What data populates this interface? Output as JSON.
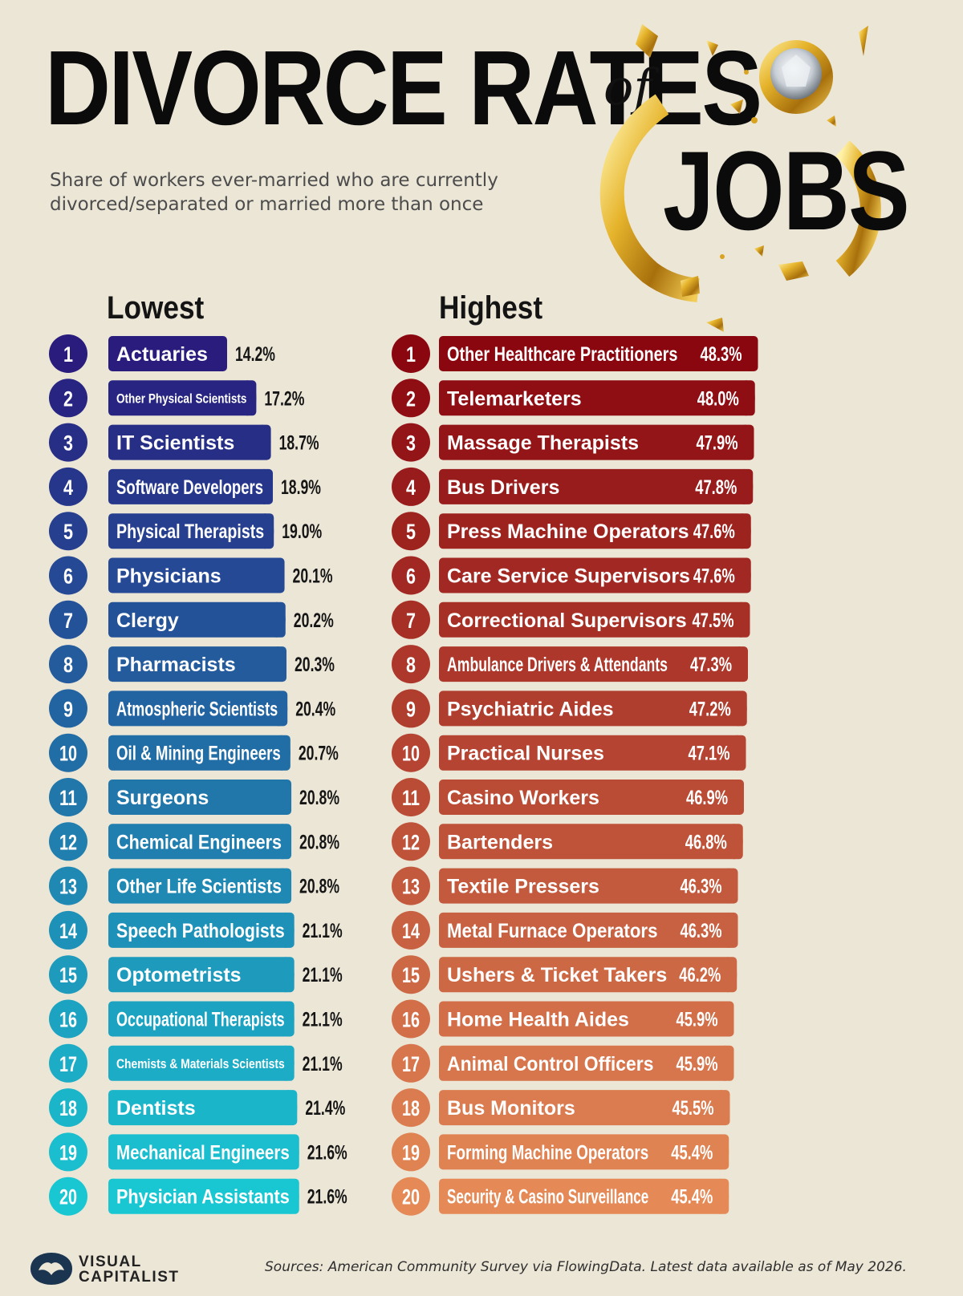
{
  "header": {
    "title_main": "DIVORCE RATES",
    "title_of": "of",
    "title_jobs": "JOBS",
    "subtitle_line1": "Share of workers ever-married who are currently",
    "subtitle_line2": "divorced/separated or married more than once"
  },
  "footer": {
    "logo_line1": "VISUAL",
    "logo_line2": "CAPITALIST",
    "source": "Sources: American Community Survey via FlowingData. Latest data available as of May 2026."
  },
  "colors": {
    "background": "#ece6d7",
    "lowest_start": "#291c7d",
    "lowest_end": "#19c7d3",
    "highest_start": "#8a0710",
    "highest_end": "#e58a57",
    "gold": "#d9a21f"
  },
  "icons": {
    "ring": "broken-gold-ring-icon",
    "logo": "visual-capitalist-logo-icon"
  },
  "chart_data": [
    {
      "type": "bar",
      "orientation": "horizontal",
      "title": "Lowest",
      "unit": "%",
      "ranks": [
        1,
        2,
        3,
        4,
        5,
        6,
        7,
        8,
        9,
        10,
        11,
        12,
        13,
        14,
        15,
        16,
        17,
        18,
        19,
        20
      ],
      "categories": [
        "Actuaries",
        "Other Physical Scientists",
        "IT Scientists",
        "Software Developers",
        "Physical Therapists",
        "Physicians",
        "Clergy",
        "Pharmacists",
        "Atmospheric Scientists",
        "Oil & Mining Engineers",
        "Surgeons",
        "Chemical Engineers",
        "Other Life Scientists",
        "Speech Pathologists",
        "Optometrists",
        "Occupational Therapists",
        "Chemists & Materials Scientists",
        "Dentists",
        "Mechanical Engineers",
        "Physician Assistants"
      ],
      "values": [
        14.2,
        17.2,
        18.7,
        18.9,
        19.0,
        20.1,
        20.2,
        20.3,
        20.4,
        20.7,
        20.8,
        20.8,
        20.8,
        21.1,
        21.1,
        21.1,
        21.1,
        21.4,
        21.6,
        21.6
      ],
      "labels": [
        "14.2%",
        "17.2%",
        "18.7%",
        "18.9%",
        "19.0%",
        "20.1%",
        "20.2%",
        "20.3%",
        "20.4%",
        "20.7%",
        "20.8%",
        "20.8%",
        "20.8%",
        "21.1%",
        "21.1%",
        "21.1%",
        "21.1%",
        "21.4%",
        "21.6%",
        "21.6%"
      ],
      "value_label_position": "outside"
    },
    {
      "type": "bar",
      "orientation": "horizontal",
      "title": "Highest",
      "unit": "%",
      "ranks": [
        1,
        2,
        3,
        4,
        5,
        6,
        7,
        8,
        9,
        10,
        11,
        12,
        13,
        14,
        15,
        16,
        17,
        18,
        19,
        20
      ],
      "categories": [
        "Other Healthcare Practitioners",
        "Telemarketers",
        "Massage Therapists",
        "Bus Drivers",
        "Press Machine Operators",
        "Care Service Supervisors",
        "Correctional Supervisors",
        "Ambulance Drivers & Attendants",
        "Psychiatric Aides",
        "Practical Nurses",
        "Casino Workers",
        "Bartenders",
        "Textile Pressers",
        "Metal Furnace Operators",
        "Ushers & Ticket Takers",
        "Home Health Aides",
        "Animal Control Officers",
        "Bus Monitors",
        "Forming Machine Operators",
        "Security & Casino Surveillance"
      ],
      "values": [
        48.3,
        48.0,
        47.9,
        47.8,
        47.6,
        47.6,
        47.5,
        47.3,
        47.2,
        47.1,
        46.9,
        46.8,
        46.3,
        46.3,
        46.2,
        45.9,
        45.9,
        45.5,
        45.4,
        45.4
      ],
      "labels": [
        "48.3%",
        "48.0%",
        "47.9%",
        "47.8%",
        "47.6%",
        "47.6%",
        "47.5%",
        "47.3%",
        "47.2%",
        "47.1%",
        "46.9%",
        "46.8%",
        "46.3%",
        "46.3%",
        "46.2%",
        "45.9%",
        "45.9%",
        "45.5%",
        "45.4%",
        "45.4%"
      ],
      "value_label_position": "inside-end"
    }
  ]
}
